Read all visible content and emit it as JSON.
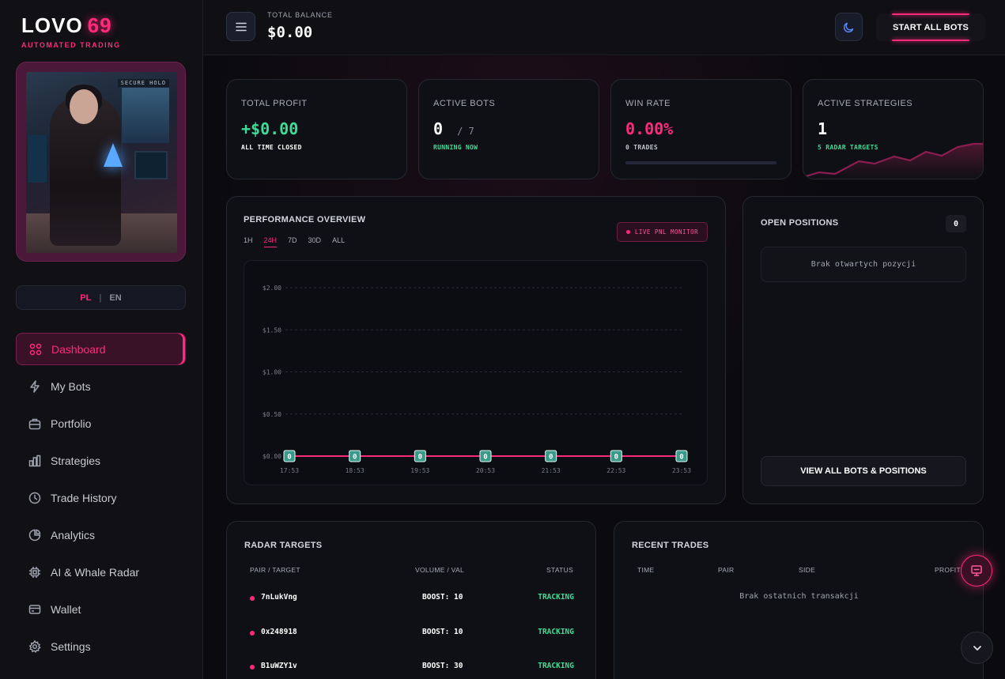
{
  "brand": {
    "name": "LOVO",
    "number": "69",
    "tagline": "AUTOMATED TRADING"
  },
  "avatar": {
    "overlay_label": "SECURE HOLO"
  },
  "language": {
    "pl": "PL",
    "separator": "|",
    "en": "EN",
    "active": "PL"
  },
  "sidebar": {
    "items": [
      {
        "label": "Dashboard",
        "icon": "grid-icon",
        "active": true
      },
      {
        "label": "My Bots",
        "icon": "bolt-icon"
      },
      {
        "label": "Portfolio",
        "icon": "briefcase-icon"
      },
      {
        "label": "Strategies",
        "icon": "bar-chart-icon"
      },
      {
        "label": "Trade History",
        "icon": "clock-icon"
      },
      {
        "label": "Analytics",
        "icon": "pie-chart-icon"
      },
      {
        "label": "AI & Whale Radar",
        "icon": "cpu-icon"
      },
      {
        "label": "Wallet",
        "icon": "wallet-icon"
      },
      {
        "label": "Settings",
        "icon": "gear-icon"
      }
    ]
  },
  "header": {
    "balance_label": "TOTAL BALANCE",
    "balance_value": "$0.00",
    "start_all_label": "START ALL BOTS"
  },
  "stats": {
    "profit": {
      "label": "TOTAL PROFIT",
      "value": "+$0.00",
      "sub": "ALL TIME CLOSED"
    },
    "bots": {
      "label": "ACTIVE BOTS",
      "value": "0",
      "total": "/ 7",
      "sub": "RUNNING NOW"
    },
    "winrate": {
      "label": "WIN RATE",
      "value": "0.00%",
      "sub": "0 TRADES",
      "fraction": 0.0
    },
    "strategies": {
      "label": "ACTIVE STRATEGIES",
      "value": "1",
      "sub": "5 RADAR TARGETS"
    }
  },
  "performance": {
    "title": "PERFORMANCE OVERVIEW",
    "timeframes": [
      "1H",
      "24H",
      "7D",
      "30D",
      "ALL"
    ],
    "active_timeframe": "24H",
    "badge": "LIVE PNL MONITOR"
  },
  "chart_data": {
    "type": "line",
    "x": [
      "17:53",
      "18:53",
      "19:53",
      "20:53",
      "21:53",
      "22:53",
      "23:53"
    ],
    "series": [
      {
        "values": [
          0,
          0,
          0,
          0,
          0,
          0,
          0
        ],
        "labels": [
          "0",
          "0",
          "0",
          "0",
          "0",
          "0",
          "0"
        ]
      }
    ],
    "yticks": [
      "$0.00",
      "$0.50",
      "$1.00",
      "$1.50",
      "$2.00"
    ],
    "ylim": [
      0,
      2
    ],
    "grid": true,
    "line_color": "#ff2a7a",
    "marker_color": "#3a9a8a"
  },
  "positions": {
    "title": "OPEN POSITIONS",
    "count": "0",
    "empty": "Brak otwartych pozycji",
    "view_all": "VIEW ALL BOTS & POSITIONS"
  },
  "radar": {
    "title": "RADAR TARGETS",
    "columns": [
      "PAIR / TARGET",
      "VOLUME / VAL",
      "STATUS"
    ],
    "rows": [
      {
        "pair": "7nLukVng",
        "volume": "BOOST: 10",
        "status": "TRACKING"
      },
      {
        "pair": "0x248918",
        "volume": "BOOST: 10",
        "status": "TRACKING"
      },
      {
        "pair": "B1uWZY1v",
        "volume": "BOOST: 30",
        "status": "TRACKING"
      }
    ]
  },
  "trades": {
    "title": "RECENT TRADES",
    "columns": [
      "TIME",
      "PAIR",
      "SIDE",
      "PROFIT"
    ],
    "empty": "Brak ostatnich transakcji"
  },
  "colors": {
    "accent": "#ff2a7a",
    "positive": "#3ddc97",
    "background": "#0c0c10"
  }
}
